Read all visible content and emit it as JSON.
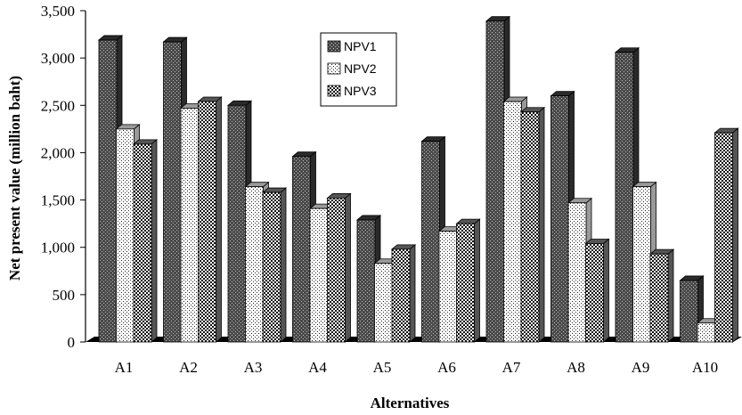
{
  "chart_data": {
    "type": "bar",
    "title": "",
    "xlabel": "Alternatives",
    "ylabel": "Net present value (million baht)",
    "categories": [
      "A1",
      "A2",
      "A3",
      "A4",
      "A5",
      "A6",
      "A7",
      "A8",
      "A9",
      "A10"
    ],
    "series": [
      {
        "name": "NPV1",
        "values": [
          3190,
          3170,
          2500,
          1960,
          1290,
          2120,
          3390,
          2600,
          3060,
          650
        ]
      },
      {
        "name": "NPV2",
        "values": [
          2250,
          2470,
          1640,
          1410,
          830,
          1170,
          2540,
          1470,
          1640,
          200
        ]
      },
      {
        "name": "NPV3",
        "values": [
          2090,
          2540,
          1580,
          1520,
          980,
          1250,
          2430,
          1040,
          930,
          2210
        ]
      }
    ],
    "ylim": [
      0,
      3500
    ],
    "yticks": [
      "0",
      "500",
      "1,000",
      "1,500",
      "2,000",
      "2,500",
      "3,000",
      "3,500"
    ],
    "legend_position": "top-center",
    "grid": false,
    "style": "3d-hatched-bars"
  }
}
